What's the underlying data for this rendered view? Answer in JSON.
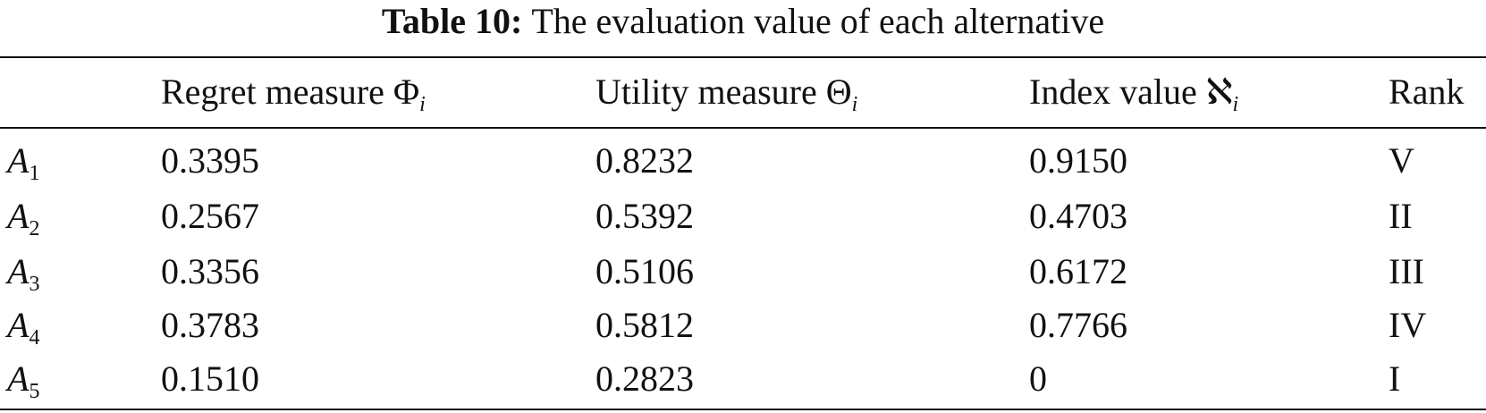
{
  "caption": {
    "label": "Table 10:",
    "text": "The evaluation value of each alternative"
  },
  "table": {
    "header": [
      {
        "text": "Regret measure Φ",
        "sub": "i"
      },
      {
        "text": "Utility measure Θ",
        "sub": "i"
      },
      {
        "text": "Index value ℵ",
        "sub": "i"
      },
      "Rank"
    ],
    "rows": [
      [
        {
          "text": "A",
          "sub": "1"
        },
        "0.3395",
        "0.8232",
        "0.9150",
        "V"
      ],
      [
        {
          "text": "A",
          "sub": "2"
        },
        "0.2567",
        "0.5392",
        "0.4703",
        "II"
      ],
      [
        {
          "text": "A",
          "sub": "3"
        },
        "0.3356",
        "0.5106",
        "0.6172",
        "III"
      ],
      [
        {
          "text": "A",
          "sub": "4"
        },
        "0.3783",
        "0.5812",
        "0.7766",
        "IV"
      ],
      [
        {
          "text": "A",
          "sub": "5"
        },
        "0.1510",
        "0.2823",
        "0",
        "I"
      ]
    ]
  }
}
